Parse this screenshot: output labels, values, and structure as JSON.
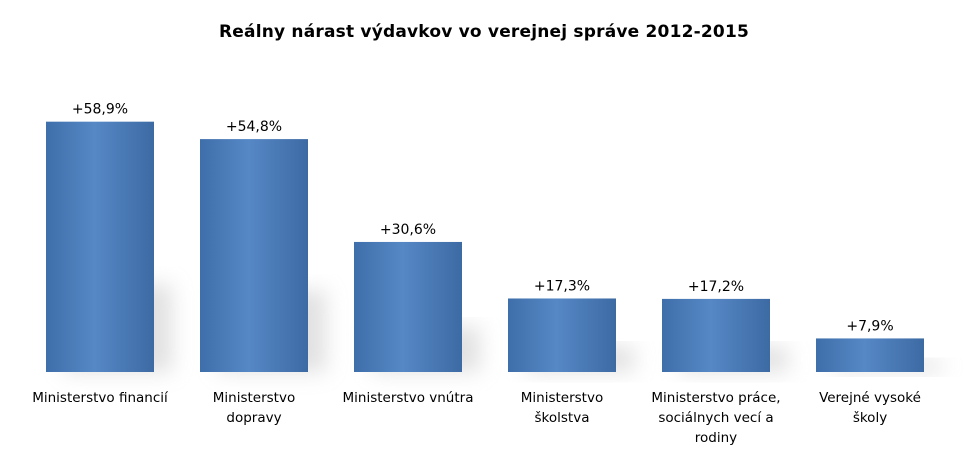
{
  "chart_data": {
    "type": "bar",
    "title": "Reálny nárast výdavkov vo verejnej správe 2012-2015",
    "categories": [
      "Ministerstvo financií",
      "Ministerstvo\ndopravy",
      "Ministerstvo vnútra",
      "Ministerstvo\nškolstva",
      "Ministerstvo práce,\nsociálnych vecí a\nrodiny",
      "Verejné vysoké\nškoly"
    ],
    "values": [
      58.9,
      54.8,
      30.6,
      17.3,
      17.2,
      7.9
    ],
    "data_labels": [
      "+58,9%",
      "+54,8%",
      "+30,6%",
      "+17,3%",
      "+17,2%",
      "+7,9%"
    ],
    "xlabel": "",
    "ylabel": "",
    "ylim": [
      0,
      65
    ],
    "grid": false,
    "legend": "none",
    "bar_color": "#4f81bd"
  }
}
